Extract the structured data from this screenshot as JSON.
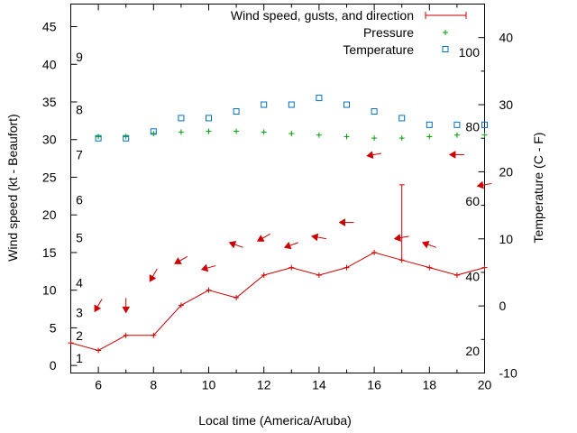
{
  "chart_data": {
    "type": "line",
    "xlabel": "Local time (America/Aruba)",
    "ylabel_left": "Wind speed (kt - Beaufort)",
    "ylabel_right": "Temperature (C - F)",
    "xlim": [
      5,
      20
    ],
    "ylim_left": [
      -1,
      48
    ],
    "ylim_right": [
      -10,
      45
    ],
    "x_ticks": [
      6,
      8,
      10,
      12,
      14,
      16,
      18,
      20
    ],
    "y_left_ticks": [
      0,
      5,
      10,
      15,
      20,
      25,
      30,
      35,
      40,
      45
    ],
    "y_right_ticks": [
      -10,
      0,
      10,
      20,
      30,
      40
    ],
    "beaufort_labels": [
      {
        "label": "1",
        "kt": 1
      },
      {
        "label": "2",
        "kt": 4
      },
      {
        "label": "3",
        "kt": 7
      },
      {
        "label": "4",
        "kt": 11
      },
      {
        "label": "5",
        "kt": 17
      },
      {
        "label": "6",
        "kt": 22
      },
      {
        "label": "7",
        "kt": 28
      },
      {
        "label": "8",
        "kt": 34
      },
      {
        "label": "9",
        "kt": 41
      }
    ],
    "fahrenheit_labels": [
      {
        "label": "20",
        "c": -6.7
      },
      {
        "label": "40",
        "c": 4.4
      },
      {
        "label": "60",
        "c": 15.6
      },
      {
        "label": "80",
        "c": 26.7
      },
      {
        "label": "100",
        "c": 37.8
      }
    ],
    "legend": {
      "placement": "top-right",
      "wind": "Wind speed, gusts, and direction",
      "pressure": "Pressure",
      "temperature": "Temperature"
    },
    "series": [
      {
        "name": "Wind speed",
        "color": "#cc0000",
        "x": [
          5,
          6,
          7,
          8,
          9,
          10,
          11,
          12,
          13,
          14,
          15,
          16,
          17,
          18,
          19,
          20
        ],
        "values": [
          3,
          2,
          4,
          4,
          8,
          10,
          9,
          12,
          13,
          12,
          13,
          15,
          14,
          13,
          12,
          13
        ]
      },
      {
        "name": "Gusts",
        "color": "#cc0000",
        "points": [
          {
            "x": 17,
            "low": 14,
            "high": 24
          }
        ]
      },
      {
        "name": "Wind direction",
        "color": "#cc0000",
        "x": [
          6,
          7,
          8,
          9,
          10,
          11,
          12,
          13,
          14,
          15,
          16,
          17,
          18,
          19,
          20
        ],
        "heading_deg": [
          30,
          0,
          30,
          60,
          75,
          110,
          60,
          70,
          100,
          90,
          80,
          80,
          110,
          90,
          80
        ],
        "y": [
          8,
          8,
          12,
          14,
          13,
          16,
          17,
          16,
          17,
          19,
          28,
          17,
          16,
          28,
          24
        ]
      },
      {
        "name": "Pressure",
        "color": "#00a000",
        "marker": "plus",
        "x": [
          6,
          7,
          8,
          9,
          10,
          11,
          12,
          13,
          14,
          15,
          16,
          17,
          18,
          19,
          20
        ],
        "values": [
          30.4,
          30.4,
          30.8,
          31.0,
          31.1,
          31.1,
          31.0,
          30.8,
          30.6,
          30.4,
          30.2,
          30.2,
          30.4,
          30.6,
          30.6
        ]
      },
      {
        "name": "Temperature",
        "color": "#0070c0",
        "marker": "open-square",
        "axis": "right",
        "x": [
          6,
          7,
          8,
          9,
          10,
          11,
          12,
          13,
          14,
          15,
          16,
          17,
          18,
          19,
          20
        ],
        "values": [
          25,
          25,
          26,
          28,
          28,
          29,
          30,
          30,
          31,
          30,
          29,
          28,
          27,
          27,
          27
        ]
      }
    ]
  }
}
